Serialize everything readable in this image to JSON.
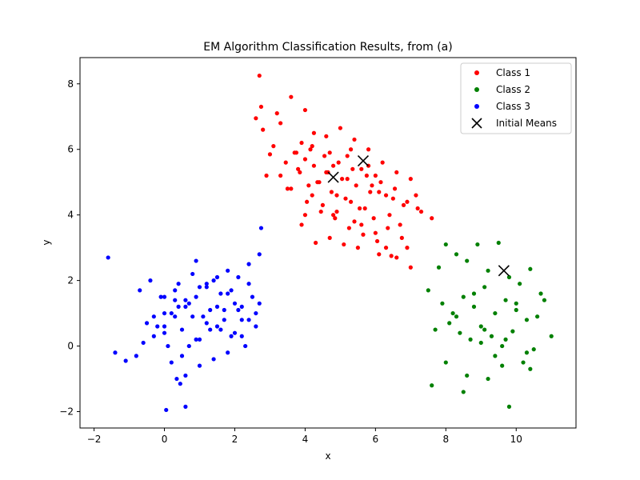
{
  "chart_data": {
    "type": "scatter",
    "title": "EM Algorithm Classification Results, from (a)",
    "xlabel": "x",
    "ylabel": "y",
    "xlim": [
      -2.4,
      11.7
    ],
    "ylim": [
      -2.5,
      8.8
    ],
    "xticks": [
      -2,
      0,
      2,
      4,
      6,
      8,
      10
    ],
    "yticks": [
      -2,
      0,
      2,
      4,
      6,
      8
    ],
    "grid": false,
    "legend": "top-right",
    "series": [
      {
        "name": "Class 1",
        "color": "#ff0000",
        "marker": "circle",
        "center": [
          5.0,
          5.0
        ],
        "x": [
          2.7,
          2.75,
          2.6,
          2.8,
          3.2,
          3.6,
          4.0,
          4.25,
          3.9,
          3.0,
          3.3,
          3.7,
          4.2,
          4.6,
          5.0,
          5.4,
          5.8,
          6.2,
          6.6,
          7.0,
          7.2,
          7.6,
          6.8,
          6.4,
          6.0,
          5.5,
          5.1,
          4.7,
          4.3,
          3.9,
          3.5,
          4.8,
          5.2,
          5.6,
          6.0,
          4.4,
          4.9,
          5.3,
          5.7,
          6.1,
          6.5,
          6.9,
          7.3,
          4.5,
          4.1,
          3.8,
          4.0,
          4.6,
          5.2,
          5.9,
          6.3,
          6.7,
          7.0,
          6.1,
          5.4,
          4.8,
          3.6,
          3.3,
          2.9,
          3.1,
          3.45,
          3.85,
          4.35,
          4.75,
          5.15,
          5.55,
          5.95,
          6.35,
          6.75,
          7.15,
          4.15,
          4.55,
          4.95,
          5.35,
          5.75,
          6.15,
          6.55,
          4.05,
          4.45,
          4.85,
          5.25,
          5.65,
          6.05,
          6.45,
          4.25,
          4.65,
          5.05,
          5.45,
          5.85,
          3.75,
          4.2,
          4.9,
          5.6,
          6.3,
          6.9,
          4.0,
          4.7,
          5.3,
          5.8,
          6.6
        ],
        "y": [
          8.25,
          7.3,
          6.95,
          6.6,
          7.1,
          7.6,
          7.2,
          6.5,
          6.2,
          5.85,
          5.2,
          5.9,
          6.1,
          6.4,
          6.65,
          6.3,
          6.0,
          5.6,
          5.3,
          5.1,
          4.2,
          3.9,
          4.3,
          4.0,
          3.45,
          3.0,
          3.1,
          3.3,
          3.15,
          3.7,
          4.8,
          5.5,
          5.8,
          5.4,
          5.2,
          5.0,
          4.6,
          4.4,
          4.2,
          4.7,
          4.5,
          4.4,
          4.1,
          4.3,
          4.9,
          5.4,
          5.7,
          5.3,
          5.1,
          4.9,
          4.6,
          3.7,
          2.4,
          2.8,
          3.8,
          4.0,
          4.8,
          6.8,
          5.2,
          6.1,
          5.6,
          5.3,
          5.0,
          4.7,
          4.5,
          4.2,
          3.9,
          3.6,
          3.3,
          4.6,
          6.0,
          5.8,
          5.6,
          5.4,
          5.2,
          5.0,
          4.8,
          4.4,
          4.1,
          3.9,
          3.6,
          3.4,
          3.2,
          2.75,
          5.5,
          5.3,
          5.1,
          4.9,
          4.7,
          5.9,
          4.6,
          4.1,
          3.7,
          3.0,
          3.0,
          4.0,
          5.9,
          6.0,
          5.5,
          2.7
        ]
      },
      {
        "name": "Class 2",
        "color": "#008000",
        "marker": "circle",
        "center": [
          9.0,
          1.0
        ],
        "x": [
          7.8,
          8.0,
          8.3,
          8.6,
          8.9,
          9.2,
          9.5,
          9.8,
          10.1,
          10.4,
          10.7,
          11.0,
          7.9,
          8.2,
          8.5,
          8.8,
          9.1,
          9.4,
          9.7,
          10.0,
          10.3,
          10.6,
          7.7,
          8.1,
          8.4,
          8.7,
          9.0,
          9.3,
          9.6,
          9.9,
          10.2,
          10.5,
          10.8,
          8.0,
          8.6,
          9.2,
          9.8,
          10.4,
          7.6,
          8.3,
          9.0,
          9.7,
          10.3,
          8.8,
          9.4,
          10.0,
          8.5,
          9.1,
          9.6,
          7.5
        ],
        "y": [
          2.4,
          3.1,
          2.8,
          2.6,
          3.1,
          2.3,
          3.15,
          2.1,
          1.9,
          2.35,
          1.6,
          0.3,
          1.3,
          1.0,
          1.5,
          1.2,
          1.8,
          1.0,
          1.4,
          1.1,
          0.8,
          0.9,
          0.5,
          0.7,
          0.4,
          0.2,
          0.6,
          0.3,
          0.0,
          0.45,
          -0.5,
          -0.1,
          1.4,
          -0.5,
          -0.9,
          -1.0,
          -1.85,
          -0.7,
          -1.2,
          0.9,
          0.1,
          0.2,
          -0.2,
          1.6,
          -0.3,
          1.3,
          -1.4,
          0.5,
          -0.6,
          1.7
        ]
      },
      {
        "name": "Class 3",
        "color": "#0000ff",
        "marker": "circle",
        "center": [
          1.0,
          1.0
        ],
        "x": [
          -1.6,
          -1.4,
          -1.1,
          -0.8,
          -0.6,
          -0.3,
          0.0,
          0.3,
          0.6,
          0.9,
          1.2,
          1.5,
          1.8,
          2.1,
          2.4,
          2.7,
          -0.7,
          -0.4,
          0.0,
          0.4,
          0.8,
          1.2,
          1.6,
          2.0,
          2.4,
          2.7,
          -0.2,
          0.2,
          0.6,
          1.0,
          1.4,
          1.8,
          2.2,
          2.6,
          0.1,
          0.5,
          0.9,
          1.3,
          1.7,
          2.1,
          2.5,
          0.3,
          0.7,
          1.1,
          1.5,
          1.9,
          2.3,
          0.0,
          0.4,
          0.8,
          1.2,
          1.6,
          2.0,
          0.2,
          0.6,
          1.0,
          1.4,
          1.8,
          2.2,
          2.6,
          0.35,
          0.45,
          0.05,
          0.6,
          2.75,
          0.9,
          1.7,
          -0.5,
          0.3,
          1.3,
          0.0,
          -0.1,
          2.2,
          1.0,
          1.9,
          0.7,
          1.5,
          -0.3,
          2.4,
          0.5
        ],
        "y": [
          2.7,
          -0.2,
          -0.45,
          -0.3,
          0.1,
          0.3,
          0.6,
          0.9,
          1.2,
          1.5,
          1.8,
          2.1,
          2.3,
          2.1,
          2.5,
          2.8,
          1.7,
          2.0,
          1.5,
          1.2,
          0.9,
          0.7,
          0.5,
          0.4,
          0.8,
          1.3,
          0.6,
          1.0,
          1.4,
          1.8,
          2.0,
          1.6,
          1.2,
          1.0,
          0.0,
          -0.3,
          0.2,
          0.5,
          0.8,
          1.1,
          1.5,
          1.7,
          1.3,
          0.9,
          0.6,
          0.3,
          0.0,
          0.4,
          1.9,
          2.2,
          1.9,
          1.6,
          1.3,
          -0.5,
          -0.9,
          -0.6,
          -0.4,
          -0.2,
          0.3,
          0.6,
          -1.0,
          -1.15,
          -1.95,
          -1.85,
          3.6,
          2.6,
          1.1,
          0.7,
          1.4,
          1.1,
          1.0,
          1.5,
          0.8,
          0.2,
          1.7,
          0.0,
          1.2,
          0.9,
          1.9,
          0.5
        ]
      }
    ],
    "initial_means": {
      "name": "Initial Means",
      "marker": "x",
      "color": "#000000",
      "x": [
        4.8,
        5.65,
        9.65
      ],
      "y": [
        5.15,
        5.65,
        2.3
      ]
    }
  }
}
